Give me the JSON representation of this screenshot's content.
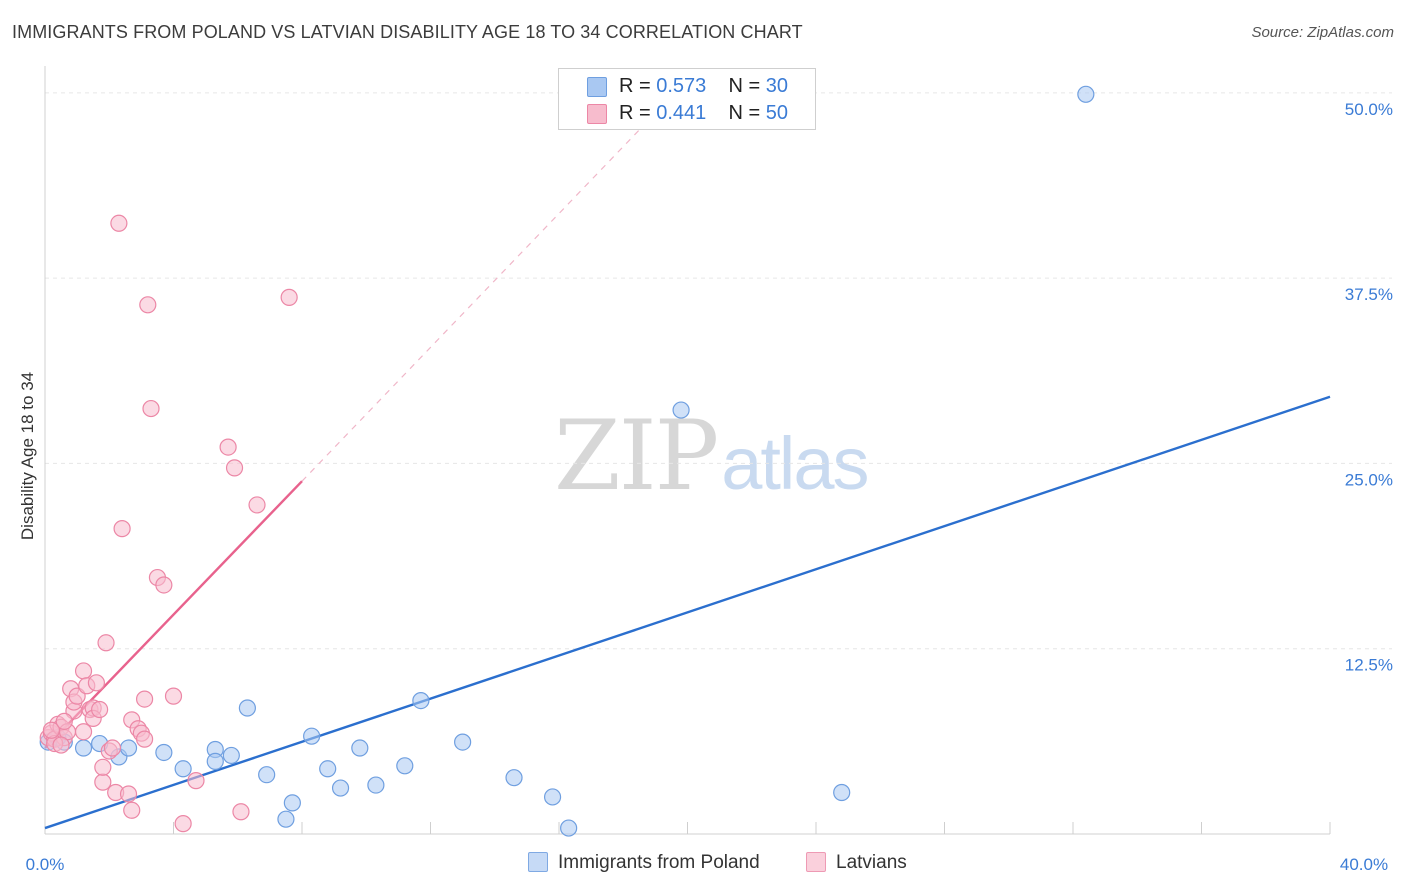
{
  "header": {
    "title": "IMMIGRANTS FROM POLAND VS LATVIAN DISABILITY AGE 18 TO 34 CORRELATION CHART",
    "source": "Source: ZipAtlas.com"
  },
  "watermark": {
    "zip": "ZIP",
    "atlas": "atlas"
  },
  "legend": {
    "r_label": "R =",
    "n_label": "N =",
    "series": [
      {
        "r": "0.573",
        "n": "30",
        "color": "#a9c8f2",
        "border": "#6f9fe0"
      },
      {
        "r": "0.441",
        "n": "50",
        "color": "#f7bccd",
        "border": "#ec87a6"
      }
    ]
  },
  "bottom_legend": {
    "items": [
      {
        "label": "Immigrants from Poland"
      },
      {
        "label": "Latvians"
      }
    ]
  },
  "chart_data": {
    "type": "scatter",
    "title": "IMMIGRANTS FROM POLAND VS LATVIAN DISABILITY AGE 18 TO 34 CORRELATION CHART",
    "xlabel": "",
    "ylabel": "Disability Age 18 to 34",
    "xlim": [
      0,
      40
    ],
    "ylim": [
      0,
      51
    ],
    "x_tick_labels": [
      "0.0%",
      "40.0%"
    ],
    "y_ticks": [
      12.5,
      25.0,
      37.5,
      50.0
    ],
    "y_tick_labels": [
      "12.5%",
      "25.0%",
      "37.5%",
      "50.0%"
    ],
    "grid": true,
    "series": [
      {
        "name": "Immigrants from Poland",
        "color": "#6f9fe0",
        "fill": "rgba(169,200,242,0.55)",
        "trend_color": "#2b6fce",
        "trend": {
          "x": [
            0,
            40
          ],
          "y": [
            0.4,
            29.5
          ]
        },
        "points": [
          [
            0.1,
            6.2
          ],
          [
            0.4,
            6.5
          ],
          [
            0.6,
            6.2
          ],
          [
            1.2,
            5.8
          ],
          [
            1.7,
            6.1
          ],
          [
            2.3,
            5.2
          ],
          [
            2.6,
            5.8
          ],
          [
            3.7,
            5.5
          ],
          [
            4.3,
            4.4
          ],
          [
            5.3,
            5.7
          ],
          [
            5.3,
            4.9
          ],
          [
            5.8,
            5.3
          ],
          [
            6.3,
            8.5
          ],
          [
            6.9,
            4.0
          ],
          [
            7.5,
            1.0
          ],
          [
            7.7,
            2.1
          ],
          [
            8.3,
            6.6
          ],
          [
            8.8,
            4.4
          ],
          [
            9.2,
            3.1
          ],
          [
            9.8,
            5.8
          ],
          [
            10.3,
            3.3
          ],
          [
            11.2,
            4.6
          ],
          [
            11.7,
            9.0
          ],
          [
            13.0,
            6.2
          ],
          [
            14.6,
            3.8
          ],
          [
            15.8,
            2.5
          ],
          [
            16.3,
            0.4
          ],
          [
            19.8,
            28.6
          ],
          [
            24.8,
            2.8
          ],
          [
            32.4,
            49.9
          ]
        ]
      },
      {
        "name": "Latvians",
        "color": "#ec87a6",
        "fill": "rgba(247,188,205,0.55)",
        "trend_color": "#e8628d",
        "trend": {
          "x": [
            0,
            8.0
          ],
          "y": [
            5.8,
            23.8
          ]
        },
        "trend_extension": {
          "x": [
            8.0,
            18.5
          ],
          "y": [
            23.8,
            47.5
          ]
        },
        "points": [
          [
            0.1,
            6.5
          ],
          [
            0.2,
            6.8
          ],
          [
            0.3,
            6.4
          ],
          [
            0.4,
            7.4
          ],
          [
            0.5,
            7.2
          ],
          [
            0.6,
            6.5
          ],
          [
            0.7,
            6.9
          ],
          [
            0.8,
            9.8
          ],
          [
            0.9,
            8.3
          ],
          [
            0.9,
            8.9
          ],
          [
            1.0,
            9.3
          ],
          [
            1.2,
            6.9
          ],
          [
            1.2,
            11.0
          ],
          [
            1.3,
            10.0
          ],
          [
            1.4,
            8.4
          ],
          [
            1.5,
            8.5
          ],
          [
            1.5,
            7.8
          ],
          [
            1.6,
            10.2
          ],
          [
            1.7,
            8.4
          ],
          [
            1.8,
            3.5
          ],
          [
            1.8,
            4.5
          ],
          [
            1.9,
            12.9
          ],
          [
            2.0,
            5.6
          ],
          [
            2.1,
            5.8
          ],
          [
            2.2,
            2.8
          ],
          [
            2.3,
            41.2
          ],
          [
            2.4,
            20.6
          ],
          [
            2.6,
            2.7
          ],
          [
            2.7,
            7.7
          ],
          [
            2.7,
            1.6
          ],
          [
            2.9,
            7.1
          ],
          [
            3.0,
            6.8
          ],
          [
            3.1,
            6.4
          ],
          [
            3.1,
            9.1
          ],
          [
            3.2,
            35.7
          ],
          [
            3.3,
            28.7
          ],
          [
            3.5,
            17.3
          ],
          [
            3.7,
            16.8
          ],
          [
            4.0,
            9.3
          ],
          [
            4.3,
            0.7
          ],
          [
            4.7,
            3.6
          ],
          [
            5.7,
            26.1
          ],
          [
            5.9,
            24.7
          ],
          [
            6.1,
            1.5
          ],
          [
            6.6,
            22.2
          ],
          [
            7.6,
            36.2
          ],
          [
            0.3,
            6.1
          ],
          [
            0.5,
            6.0
          ],
          [
            0.2,
            7.0
          ],
          [
            0.6,
            7.6
          ]
        ]
      }
    ]
  }
}
